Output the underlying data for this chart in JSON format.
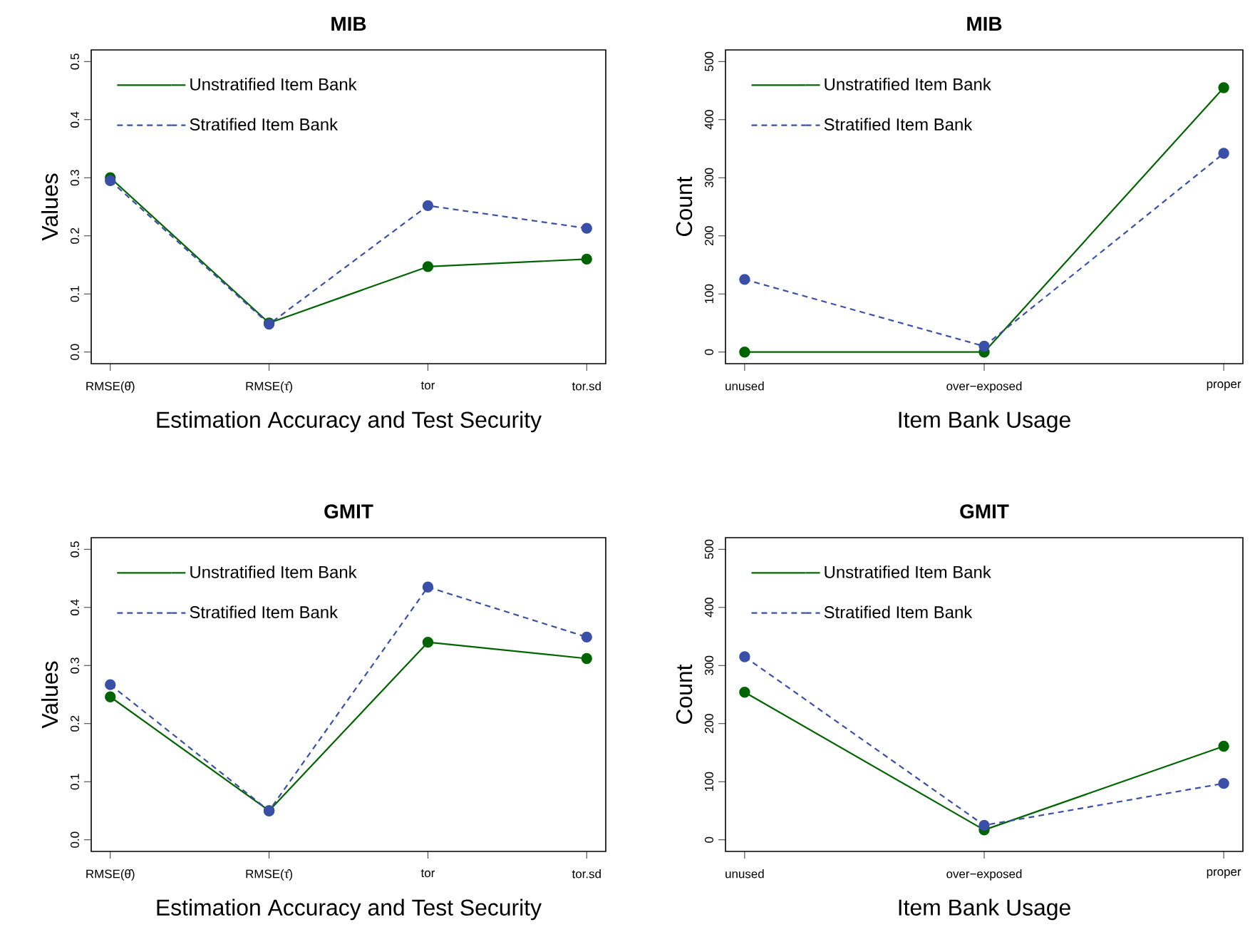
{
  "chart_data": [
    {
      "type": "line",
      "title": "MIB",
      "xlabel": "Estimation Accuracy and Test Security",
      "ylabel": "Values",
      "categories": [
        "RMSE(θ̂)",
        "RMSE(τ̂)",
        "tor",
        "tor.sd"
      ],
      "series": [
        {
          "name": "Unstratified Item Bank",
          "color": "#006400",
          "line_style": "solid",
          "values": [
            0.3,
            0.05,
            0.147,
            0.16
          ]
        },
        {
          "name": "Stratified Item Bank",
          "color": "#3a4fa8",
          "line_style": "dashed",
          "values": [
            0.295,
            0.048,
            0.252,
            0.213
          ]
        }
      ],
      "ylim": [
        -0.02,
        0.52
      ],
      "yticks": [
        {
          "value": 0,
          "label": "0.0"
        },
        0.1,
        0.2,
        0.3,
        0.4,
        0.5
      ],
      "legend": "top left",
      "marker": "circle"
    },
    {
      "type": "line",
      "title": "MIB",
      "xlabel": "Item Bank Usage",
      "ylabel": "Count",
      "categories": [
        "unused",
        "over−exposed",
        "proper"
      ],
      "series": [
        {
          "name": "Unstratified Item Bank",
          "color": "#006400",
          "line_style": "solid",
          "values": [
            0,
            0,
            455
          ]
        },
        {
          "name": "Stratified Item Bank",
          "color": "#3a4fa8",
          "line_style": "dashed",
          "values": [
            125,
            10,
            342
          ]
        }
      ],
      "ylim": [
        -20,
        520
      ],
      "yticks": [
        0,
        100,
        200,
        300,
        400,
        500
      ],
      "legend": "top left",
      "marker": "circle"
    },
    {
      "type": "line",
      "title": "GMIT",
      "xlabel": "Estimation Accuracy and Test Security",
      "ylabel": "Values",
      "categories": [
        "RMSE(θ̂)",
        "RMSE(τ̂)",
        "tor",
        "tor.sd"
      ],
      "series": [
        {
          "name": "Unstratified Item Bank",
          "color": "#006400",
          "line_style": "solid",
          "values": [
            0.246,
            0.05,
            0.34,
            0.312
          ]
        },
        {
          "name": "Stratified Item Bank",
          "color": "#3a4fa8",
          "line_style": "dashed",
          "values": [
            0.267,
            0.05,
            0.435,
            0.349
          ]
        }
      ],
      "ylim": [
        -0.02,
        0.52
      ],
      "yticks": [
        {
          "value": 0,
          "label": "0.0"
        },
        0.1,
        0.2,
        0.3,
        0.4,
        0.5
      ],
      "legend": "top left",
      "marker": "circle"
    },
    {
      "type": "line",
      "title": "GMIT",
      "xlabel": "Item Bank Usage",
      "ylabel": "Count",
      "categories": [
        "unused",
        "over−exposed",
        "proper"
      ],
      "series": [
        {
          "name": "Unstratified Item Bank",
          "color": "#006400",
          "line_style": "solid",
          "values": [
            254,
            17,
            161
          ]
        },
        {
          "name": "Stratified Item Bank",
          "color": "#3a4fa8",
          "line_style": "dashed",
          "values": [
            315,
            25,
            97
          ]
        }
      ],
      "ylim": [
        -20,
        520
      ],
      "yticks": [
        0,
        100,
        200,
        300,
        400,
        500
      ],
      "legend": "top left",
      "marker": "circle"
    }
  ]
}
